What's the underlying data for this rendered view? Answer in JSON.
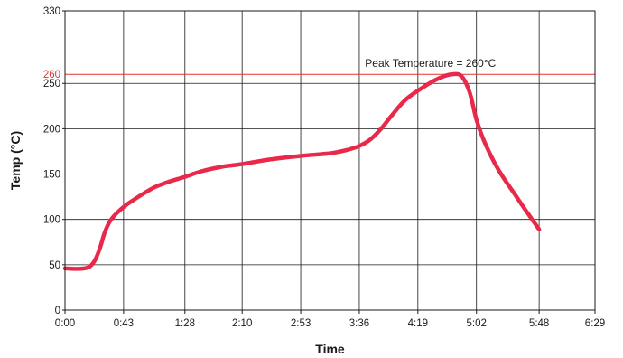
{
  "chart_data": {
    "type": "line",
    "title": "",
    "xlabel": "Time",
    "ylabel": "Temp (°C)",
    "x_unit": "seconds",
    "xlim": [
      0,
      389
    ],
    "ylim": [
      0,
      330
    ],
    "grid": true,
    "x_ticks": [
      {
        "value": 0,
        "label": "0:00"
      },
      {
        "value": 43,
        "label": "0:43"
      },
      {
        "value": 88,
        "label": "1:28"
      },
      {
        "value": 130,
        "label": "2:10"
      },
      {
        "value": 173,
        "label": "2:53"
      },
      {
        "value": 216,
        "label": "3:36"
      },
      {
        "value": 259,
        "label": "4:19"
      },
      {
        "value": 302,
        "label": "5:02"
      },
      {
        "value": 348,
        "label": "5:48"
      },
      {
        "value": 389,
        "label": "6:29"
      }
    ],
    "y_ticks": [
      0,
      50,
      100,
      150,
      200,
      250,
      330
    ],
    "reference_line": {
      "value": 260,
      "label": "260",
      "color": "#e0342a"
    },
    "annotation": {
      "text": "Peak Temperature = 260°C",
      "x": 255,
      "y": 272
    },
    "series": [
      {
        "color": "#e8294a",
        "points": [
          [
            0,
            46
          ],
          [
            8,
            45.5
          ],
          [
            14,
            46
          ],
          [
            18,
            48
          ],
          [
            22,
            55
          ],
          [
            26,
            70
          ],
          [
            29,
            85
          ],
          [
            33,
            98
          ],
          [
            38,
            107
          ],
          [
            45,
            116
          ],
          [
            55,
            126
          ],
          [
            65,
            135
          ],
          [
            75,
            141
          ],
          [
            88,
            147
          ],
          [
            100,
            153
          ],
          [
            115,
            158
          ],
          [
            130,
            161
          ],
          [
            150,
            166
          ],
          [
            173,
            170
          ],
          [
            195,
            173
          ],
          [
            208,
            177
          ],
          [
            216,
            181
          ],
          [
            224,
            188
          ],
          [
            232,
            200
          ],
          [
            240,
            215
          ],
          [
            250,
            232
          ],
          [
            262,
            245
          ],
          [
            275,
            256
          ],
          [
            284,
            260
          ],
          [
            291,
            258
          ],
          [
            297,
            240
          ],
          [
            302,
            210
          ],
          [
            308,
            185
          ],
          [
            318,
            155
          ],
          [
            330,
            128
          ],
          [
            340,
            106
          ],
          [
            348,
            89
          ]
        ]
      }
    ]
  }
}
